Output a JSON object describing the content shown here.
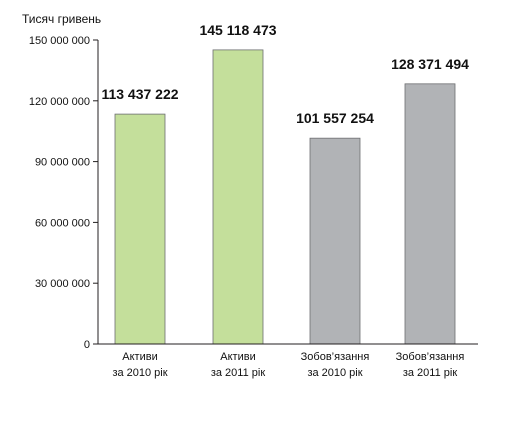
{
  "chart_data": {
    "type": "bar",
    "ylabel": "Тисяч гривень",
    "ylim": [
      0,
      150000000
    ],
    "yticks": [
      0,
      30000000,
      60000000,
      90000000,
      120000000,
      150000000
    ],
    "ytick_labels": [
      "0",
      "30 000 000",
      "60 000 000",
      "90 000 000",
      "120 000 000",
      "150 000 000"
    ],
    "grid": false,
    "categories": [
      {
        "line1": "Активи",
        "line2": "за 2010 рік"
      },
      {
        "line1": "Активи",
        "line2": "за 2011 рік"
      },
      {
        "line1": "Зобов’язання",
        "line2": "за 2010 рік"
      },
      {
        "line1": "Зобов’язання",
        "line2": "за 2011 рік"
      }
    ],
    "values": [
      113437222,
      145118473,
      101557254,
      128371494
    ],
    "data_labels": [
      "113 437 222",
      "145 118 473",
      "101 557 254",
      "128 371 494"
    ],
    "bar_colors": [
      "#c4df9b",
      "#c4df9b",
      "#b1b3b6",
      "#b1b3b6"
    ],
    "bar_stroke": "#6d6e71",
    "axis_color": "#231f20"
  }
}
